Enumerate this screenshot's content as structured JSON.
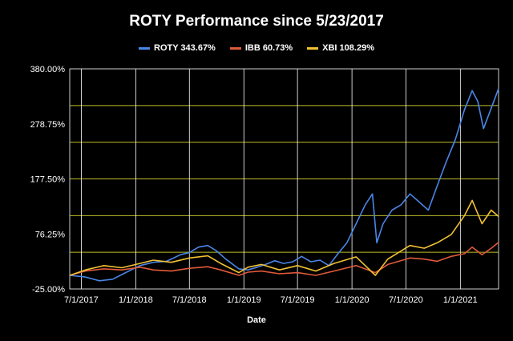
{
  "chart_data": {
    "type": "line",
    "title": "ROTY Performance since 5/23/2017",
    "xlabel": "Date",
    "ylabel": "",
    "ylim": [
      -25,
      380
    ],
    "y_ticks": [
      "380.00%",
      "278.75%",
      "177.50%",
      "76.25%",
      "-25.00%"
    ],
    "y_tick_values": [
      380,
      278.75,
      177.5,
      76.25,
      -25
    ],
    "x_ticks": [
      "7/1/2017",
      "1/1/2018",
      "7/1/2018",
      "1/1/2019",
      "7/1/2019",
      "1/1/2020",
      "7/1/2020",
      "1/1/2021"
    ],
    "x_tick_values": [
      "2017-07-01",
      "2018-01-01",
      "2018-07-01",
      "2019-01-01",
      "2019-07-01",
      "2020-01-01",
      "2020-07-01",
      "2021-01-01"
    ],
    "xlim": [
      "2017-05-23",
      "2021-05-10"
    ],
    "series": [
      {
        "name": "ROTY 343.67%",
        "color": "#4a86e8",
        "points": [
          [
            "2017-05-23",
            0
          ],
          [
            "2017-07-15",
            -3
          ],
          [
            "2017-09-01",
            -10
          ],
          [
            "2017-10-15",
            -7
          ],
          [
            "2017-12-01",
            6
          ],
          [
            "2018-01-15",
            18
          ],
          [
            "2018-03-01",
            24
          ],
          [
            "2018-04-15",
            26
          ],
          [
            "2018-06-01",
            38
          ],
          [
            "2018-07-01",
            42
          ],
          [
            "2018-08-01",
            52
          ],
          [
            "2018-09-01",
            55
          ],
          [
            "2018-10-01",
            45
          ],
          [
            "2018-11-01",
            30
          ],
          [
            "2018-12-15",
            12
          ],
          [
            "2019-01-15",
            10
          ],
          [
            "2019-02-15",
            15
          ],
          [
            "2019-03-15",
            20
          ],
          [
            "2019-04-15",
            27
          ],
          [
            "2019-05-15",
            22
          ],
          [
            "2019-06-15",
            25
          ],
          [
            "2019-07-15",
            35
          ],
          [
            "2019-08-15",
            25
          ],
          [
            "2019-09-15",
            28
          ],
          [
            "2019-10-15",
            18
          ],
          [
            "2019-11-15",
            40
          ],
          [
            "2019-12-15",
            60
          ],
          [
            "2020-01-15",
            95
          ],
          [
            "2020-02-15",
            130
          ],
          [
            "2020-03-10",
            150
          ],
          [
            "2020-03-25",
            60
          ],
          [
            "2020-04-15",
            95
          ],
          [
            "2020-05-15",
            120
          ],
          [
            "2020-06-15",
            130
          ],
          [
            "2020-07-15",
            150
          ],
          [
            "2020-08-15",
            135
          ],
          [
            "2020-09-15",
            120
          ],
          [
            "2020-10-15",
            165
          ],
          [
            "2020-11-15",
            210
          ],
          [
            "2020-12-15",
            250
          ],
          [
            "2021-01-15",
            305
          ],
          [
            "2021-02-10",
            340
          ],
          [
            "2021-03-01",
            320
          ],
          [
            "2021-03-20",
            270
          ],
          [
            "2021-04-10",
            300
          ],
          [
            "2021-05-10",
            343.67
          ]
        ]
      },
      {
        "name": "IBB 60.73%",
        "color": "#e05a3a",
        "points": [
          [
            "2017-05-23",
            0
          ],
          [
            "2017-07-15",
            8
          ],
          [
            "2017-09-15",
            12
          ],
          [
            "2017-11-15",
            10
          ],
          [
            "2018-01-15",
            15
          ],
          [
            "2018-03-01",
            10
          ],
          [
            "2018-05-01",
            8
          ],
          [
            "2018-07-01",
            13
          ],
          [
            "2018-09-01",
            16
          ],
          [
            "2018-10-15",
            10
          ],
          [
            "2018-12-15",
            0
          ],
          [
            "2019-01-15",
            6
          ],
          [
            "2019-03-01",
            8
          ],
          [
            "2019-05-01",
            3
          ],
          [
            "2019-07-01",
            5
          ],
          [
            "2019-09-01",
            0
          ],
          [
            "2019-11-01",
            8
          ],
          [
            "2020-01-15",
            18
          ],
          [
            "2020-03-20",
            5
          ],
          [
            "2020-05-01",
            20
          ],
          [
            "2020-07-15",
            32
          ],
          [
            "2020-09-01",
            30
          ],
          [
            "2020-10-15",
            26
          ],
          [
            "2020-12-01",
            35
          ],
          [
            "2021-01-15",
            40
          ],
          [
            "2021-02-10",
            52
          ],
          [
            "2021-03-15",
            38
          ],
          [
            "2021-04-15",
            50
          ],
          [
            "2021-05-10",
            60.73
          ]
        ]
      },
      {
        "name": "XBI 108.29%",
        "color": "#f1c232",
        "points": [
          [
            "2017-05-23",
            0
          ],
          [
            "2017-07-15",
            10
          ],
          [
            "2017-09-15",
            18
          ],
          [
            "2017-11-15",
            14
          ],
          [
            "2018-01-15",
            22
          ],
          [
            "2018-03-01",
            28
          ],
          [
            "2018-05-01",
            24
          ],
          [
            "2018-07-01",
            32
          ],
          [
            "2018-09-01",
            36
          ],
          [
            "2018-10-15",
            22
          ],
          [
            "2018-12-15",
            5
          ],
          [
            "2019-01-15",
            15
          ],
          [
            "2019-03-01",
            20
          ],
          [
            "2019-05-01",
            10
          ],
          [
            "2019-07-01",
            18
          ],
          [
            "2019-09-01",
            8
          ],
          [
            "2019-11-01",
            22
          ],
          [
            "2020-01-15",
            34
          ],
          [
            "2020-03-20",
            0
          ],
          [
            "2020-05-01",
            30
          ],
          [
            "2020-07-15",
            55
          ],
          [
            "2020-09-01",
            50
          ],
          [
            "2020-10-15",
            60
          ],
          [
            "2020-12-01",
            75
          ],
          [
            "2021-01-15",
            110
          ],
          [
            "2021-02-10",
            138
          ],
          [
            "2021-03-15",
            95
          ],
          [
            "2021-04-15",
            120
          ],
          [
            "2021-05-10",
            108.29
          ]
        ]
      }
    ],
    "grid": true,
    "gridline_color": "#bcbc2a",
    "legend_position": "top-center"
  }
}
